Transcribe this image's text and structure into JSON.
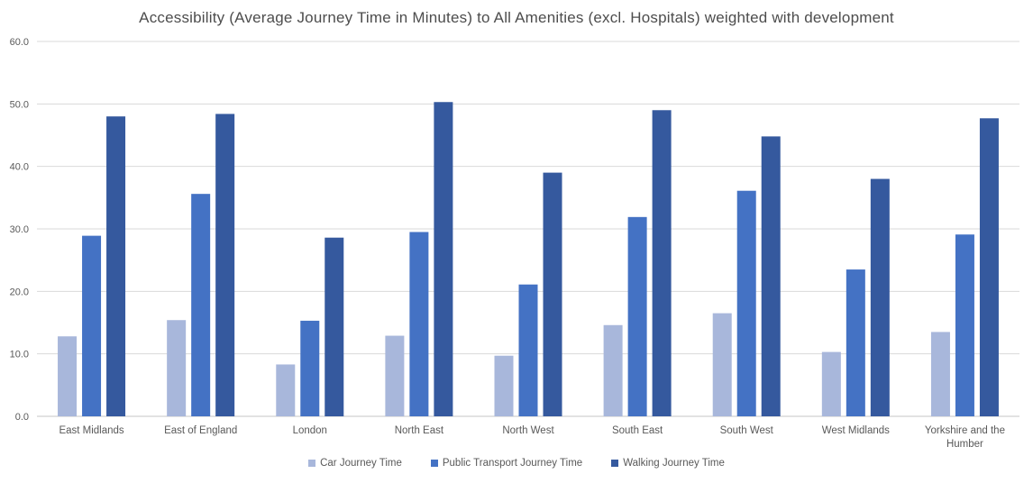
{
  "chart_data": {
    "type": "bar",
    "title": "Accessibility (Average Journey Time in Minutes) to All Amenities (excl. Hospitals) weighted with development",
    "xlabel": "",
    "ylabel": "",
    "categories": [
      "East Midlands",
      "East of England",
      "London",
      "North East",
      "North West",
      "South East",
      "South West",
      "West Midlands",
      "Yorkshire and the Humber"
    ],
    "series": [
      {
        "name": "Car Journey Time",
        "color": "#a8b7db",
        "values": [
          12.8,
          15.4,
          8.3,
          12.9,
          9.7,
          14.6,
          16.5,
          10.3,
          13.5
        ]
      },
      {
        "name": "Public Transport Journey Time",
        "color": "#4472c4",
        "values": [
          28.9,
          35.6,
          15.3,
          29.5,
          21.1,
          31.9,
          36.1,
          23.5,
          29.1
        ]
      },
      {
        "name": "Walking Journey Time",
        "color": "#35599e",
        "values": [
          48.0,
          48.4,
          28.6,
          50.3,
          39.0,
          49.0,
          44.8,
          38.0,
          47.7
        ]
      }
    ],
    "ylim": [
      0,
      60
    ],
    "ytick_labels": [
      "0.0",
      "10.0",
      "20.0",
      "30.0",
      "40.0",
      "50.0",
      "60.0"
    ],
    "grid": "horizontal",
    "legend_position": "bottom",
    "colors": {
      "background": "#ffffff",
      "title_text": "#4d4d4d",
      "axis_text": "#595959",
      "gridline": "#d9d9d9",
      "baseline": "#c6c6c6"
    }
  }
}
